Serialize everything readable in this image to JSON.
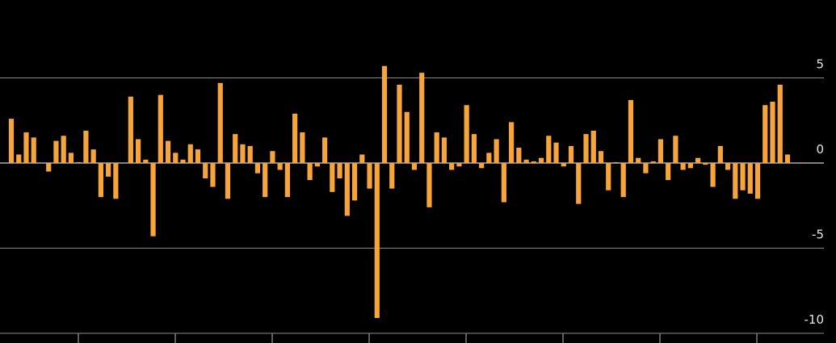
{
  "chart_data": {
    "type": "bar",
    "color": "#f7a43a",
    "categories": [
      null,
      null,
      null,
      null,
      null,
      null,
      null,
      null,
      null,
      null,
      null,
      null,
      null,
      null,
      null,
      null,
      null,
      null,
      null,
      null,
      null,
      null,
      null,
      null,
      null,
      null,
      null,
      null,
      null,
      null,
      null,
      null,
      null,
      null,
      null,
      null,
      null,
      null,
      null,
      null,
      null,
      null,
      null,
      null,
      null,
      null,
      null,
      null,
      null,
      null,
      null,
      null,
      null,
      null,
      null,
      null,
      null,
      null,
      null,
      null,
      null,
      null,
      null,
      null,
      null,
      null,
      null,
      null,
      null,
      null,
      null,
      null,
      null,
      null,
      null,
      null,
      null,
      null,
      null,
      null,
      null,
      null,
      null,
      null,
      null,
      null,
      null,
      null,
      null,
      null,
      null,
      null,
      null,
      null,
      null,
      null,
      null,
      null,
      null,
      null,
      null,
      null,
      null,
      null,
      null
    ],
    "values": [
      2.6,
      0.5,
      1.8,
      1.5,
      0,
      -0.5,
      1.3,
      1.6,
      0.6,
      0.05,
      1.9,
      0.8,
      -2.0,
      -0.8,
      -2.1,
      0,
      3.9,
      1.4,
      0.2,
      -4.3,
      4.0,
      1.3,
      0.6,
      0.2,
      1.1,
      0.8,
      -0.9,
      -1.4,
      4.7,
      -2.1,
      1.7,
      1.1,
      1.0,
      -0.6,
      -2.0,
      0.7,
      -0.4,
      -2.0,
      2.9,
      1.8,
      -1.0,
      -0.2,
      1.5,
      -1.7,
      -0.9,
      -3.1,
      -2.2,
      0.5,
      -1.5,
      -9.1,
      5.7,
      -1.5,
      4.6,
      3.0,
      -0.4,
      5.3,
      -2.6,
      1.8,
      1.5,
      -0.4,
      -0.2,
      3.4,
      1.7,
      -0.3,
      0.6,
      1.4,
      -2.3,
      2.4,
      0.9,
      0.2,
      0.1,
      0.3,
      1.6,
      1.2,
      -0.2,
      1.0,
      -2.4,
      1.7,
      1.9,
      0.7,
      -1.6,
      0.05,
      -2.0,
      3.7,
      0.3,
      -0.6,
      0.1,
      1.4,
      -1.0,
      1.6,
      -0.4,
      -0.3,
      0.3,
      -0.1,
      -1.4,
      1.0,
      -0.4,
      -2.1,
      -1.6,
      -1.8,
      -2.1,
      3.4,
      3.6,
      4.6,
      0.5
    ],
    "ylim": [
      -10,
      6
    ],
    "yticks": [
      -10,
      -5,
      0,
      5
    ],
    "grid": true
  }
}
